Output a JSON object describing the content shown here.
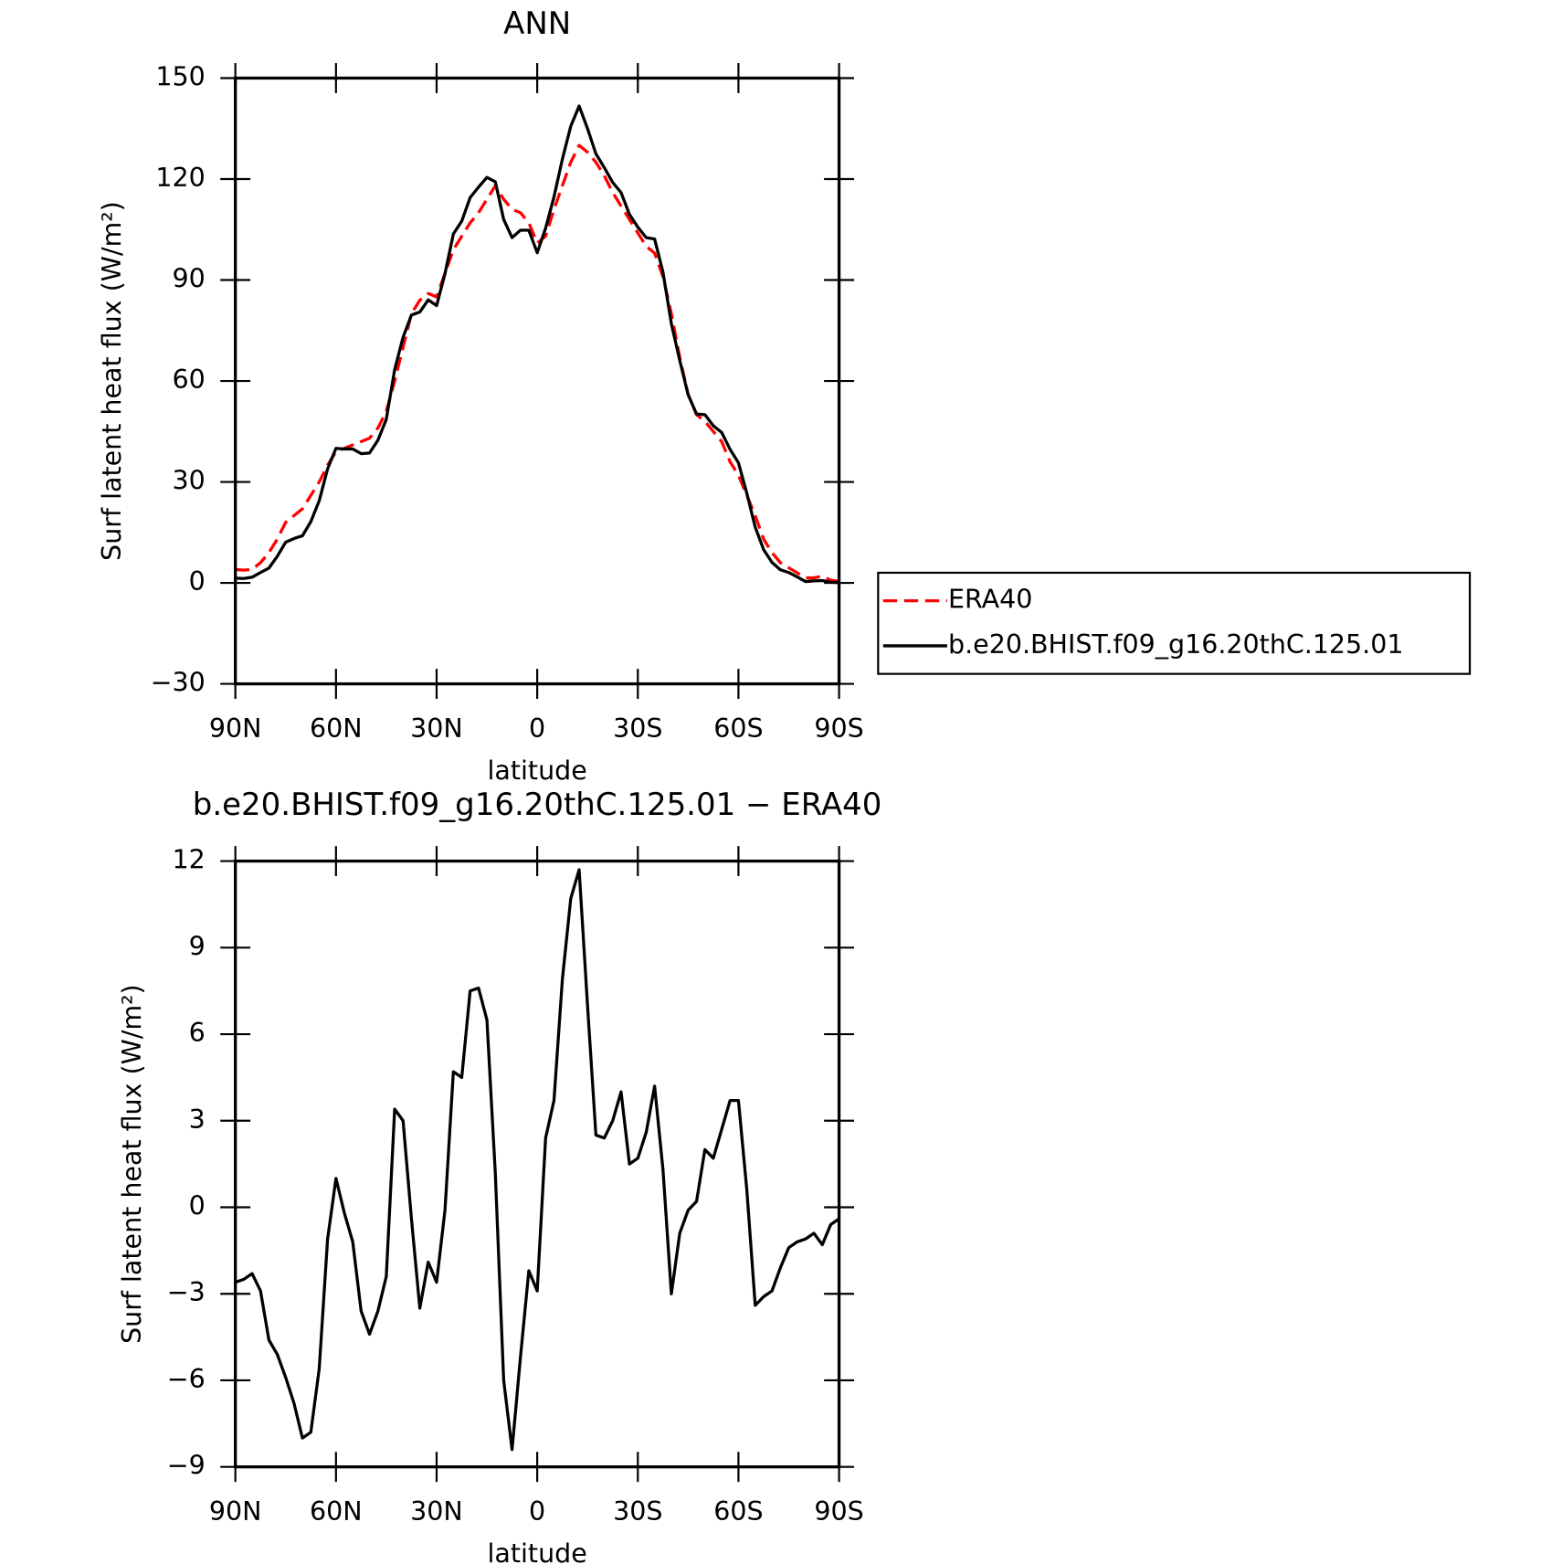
{
  "chart_data": [
    {
      "type": "line",
      "title": "ANN",
      "x_label": "latitude",
      "y_label": "Surf latent heat flux (W/m²)",
      "x": [
        90,
        87.5,
        85,
        82.5,
        80,
        77.5,
        75,
        72.5,
        70,
        67.5,
        65,
        62.5,
        60,
        57.5,
        55,
        52.5,
        50,
        47.5,
        45,
        42.5,
        40,
        37.5,
        35,
        32.5,
        30,
        27.5,
        25,
        22.5,
        20,
        17.5,
        15,
        12.5,
        10,
        7.5,
        5,
        2.5,
        0,
        -2.5,
        -5,
        -7.5,
        -10,
        -12.5,
        -15,
        -17.5,
        -20,
        -22.5,
        -25,
        -27.5,
        -30,
        -32.5,
        -35,
        -37.5,
        -40,
        -42.5,
        -45,
        -47.5,
        -50,
        -52.5,
        -55,
        -57.5,
        -60,
        -62.5,
        -65,
        -67.5,
        -70,
        -72.5,
        -75,
        -77.5,
        -80,
        -82.5,
        -85,
        -87.5,
        -90
      ],
      "series": [
        {
          "name": "ERA40",
          "color": "#ff0000",
          "line_style": "dashed",
          "values": [
            4,
            3.8,
            4,
            6,
            9,
            13,
            18,
            20,
            22,
            26,
            30,
            35,
            39,
            40,
            41,
            42,
            43,
            46,
            51,
            60,
            70,
            80,
            84,
            86,
            85,
            92,
            99,
            103,
            107,
            110,
            114,
            118,
            114,
            111,
            110,
            107,
            101,
            103,
            111,
            118,
            125,
            130,
            128,
            125,
            121,
            116,
            112,
            108,
            104,
            100,
            98,
            91,
            80,
            67,
            56,
            50,
            48,
            45,
            42,
            36,
            32,
            26,
            20,
            13,
            9,
            6,
            4.5,
            3,
            1.5,
            1.5,
            2,
            0.8,
            0.5
          ]
        },
        {
          "name": "b.e20.BHIST.f09_g16.20thC.125.01",
          "color": "#000000",
          "line_style": "solid",
          "values": [
            1.4,
            1.3,
            1.7,
            3.1,
            4.4,
            7.9,
            12.1,
            13.2,
            14,
            18.2,
            24.4,
            33.9,
            40,
            39.8,
            39.8,
            38.4,
            38.6,
            42.4,
            48.6,
            63.4,
            73,
            79.6,
            80.5,
            84.1,
            82.4,
            91.9,
            103.7,
            107.5,
            114.5,
            117.6,
            120.5,
            119.2,
            108,
            102.6,
            104.8,
            104.8,
            98.1,
            105.4,
            114.7,
            125.9,
            135.7,
            141.7,
            135,
            127.5,
            123.4,
            119,
            116,
            109.5,
            105.7,
            102.6,
            102.2,
            92.3,
            77,
            66.1,
            55.9,
            50.2,
            50,
            46.7,
            44.7,
            39.7,
            35.7,
            26.6,
            16.6,
            9.9,
            6.1,
            3.9,
            3.1,
            1.8,
            0.4,
            0.6,
            0.7,
            0.2,
            0.1
          ]
        }
      ],
      "xlim": [
        90,
        -90
      ],
      "xticks": [
        {
          "value": 90,
          "label": "90N"
        },
        {
          "value": 60,
          "label": "60N"
        },
        {
          "value": 30,
          "label": "30N"
        },
        0,
        {
          "value": -30,
          "label": "30S"
        },
        {
          "value": -60,
          "label": "60S"
        },
        {
          "value": -90,
          "label": "90S"
        }
      ],
      "ylim": [
        -30,
        150
      ],
      "yticks": [
        {
          "value": -30,
          "label": "−30"
        },
        0,
        30,
        60,
        90,
        120,
        150
      ],
      "legend": "right"
    },
    {
      "type": "line",
      "title": "b.e20.BHIST.f09_g16.20thC.125.01 − ERA40",
      "x_label": "latitude",
      "y_label": "Surf latent heat flux (W/m²)",
      "x": [
        90,
        87.5,
        85,
        82.5,
        80,
        77.5,
        75,
        72.5,
        70,
        67.5,
        65,
        62.5,
        60,
        57.5,
        55,
        52.5,
        50,
        47.5,
        45,
        42.5,
        40,
        37.5,
        35,
        32.5,
        30,
        27.5,
        25,
        22.5,
        20,
        17.5,
        15,
        12.5,
        10,
        7.5,
        5,
        2.5,
        0,
        -2.5,
        -5,
        -7.5,
        -10,
        -12.5,
        -15,
        -17.5,
        -20,
        -22.5,
        -25,
        -27.5,
        -30,
        -32.5,
        -35,
        -37.5,
        -40,
        -42.5,
        -45,
        -47.5,
        -50,
        -52.5,
        -55,
        -57.5,
        -60,
        -62.5,
        -65,
        -67.5,
        -70,
        -72.5,
        -75,
        -77.5,
        -80,
        -82.5,
        -85,
        -87.5,
        -90
      ],
      "values": [
        -2.6,
        -2.5,
        -2.3,
        -2.9,
        -4.6,
        -5.1,
        -5.9,
        -6.8,
        -8.0,
        -7.8,
        -5.6,
        -1.1,
        1.0,
        -0.2,
        -1.2,
        -3.6,
        -4.4,
        -3.6,
        -2.4,
        3.4,
        3.0,
        -0.4,
        -3.5,
        -1.9,
        -2.6,
        -0.1,
        4.7,
        4.5,
        7.5,
        7.6,
        6.5,
        1.2,
        -6.0,
        -8.4,
        -5.2,
        -2.2,
        -2.9,
        2.4,
        3.7,
        7.9,
        10.7,
        11.7,
        7.0,
        2.5,
        2.4,
        3.0,
        4.0,
        1.5,
        1.7,
        2.6,
        4.2,
        1.3,
        -3.0,
        -0.9,
        -0.1,
        0.2,
        2.0,
        1.7,
        2.7,
        3.7,
        3.7,
        0.6,
        -3.4,
        -3.1,
        -2.9,
        -2.1,
        -1.4,
        -1.2,
        -1.1,
        -0.9,
        -1.3,
        -0.6,
        -0.4
      ],
      "color": "#000000",
      "xlim": [
        90,
        -90
      ],
      "xticks": [
        {
          "value": 90,
          "label": "90N"
        },
        {
          "value": 60,
          "label": "60N"
        },
        {
          "value": 30,
          "label": "30N"
        },
        0,
        {
          "value": -30,
          "label": "30S"
        },
        {
          "value": -60,
          "label": "60S"
        },
        {
          "value": -90,
          "label": "90S"
        }
      ],
      "ylim": [
        -9,
        12
      ],
      "yticks": [
        {
          "value": -9,
          "label": "−9"
        },
        {
          "value": -6,
          "label": "−6"
        },
        {
          "value": -3,
          "label": "−3"
        },
        0,
        3,
        6,
        9,
        12
      ]
    }
  ]
}
